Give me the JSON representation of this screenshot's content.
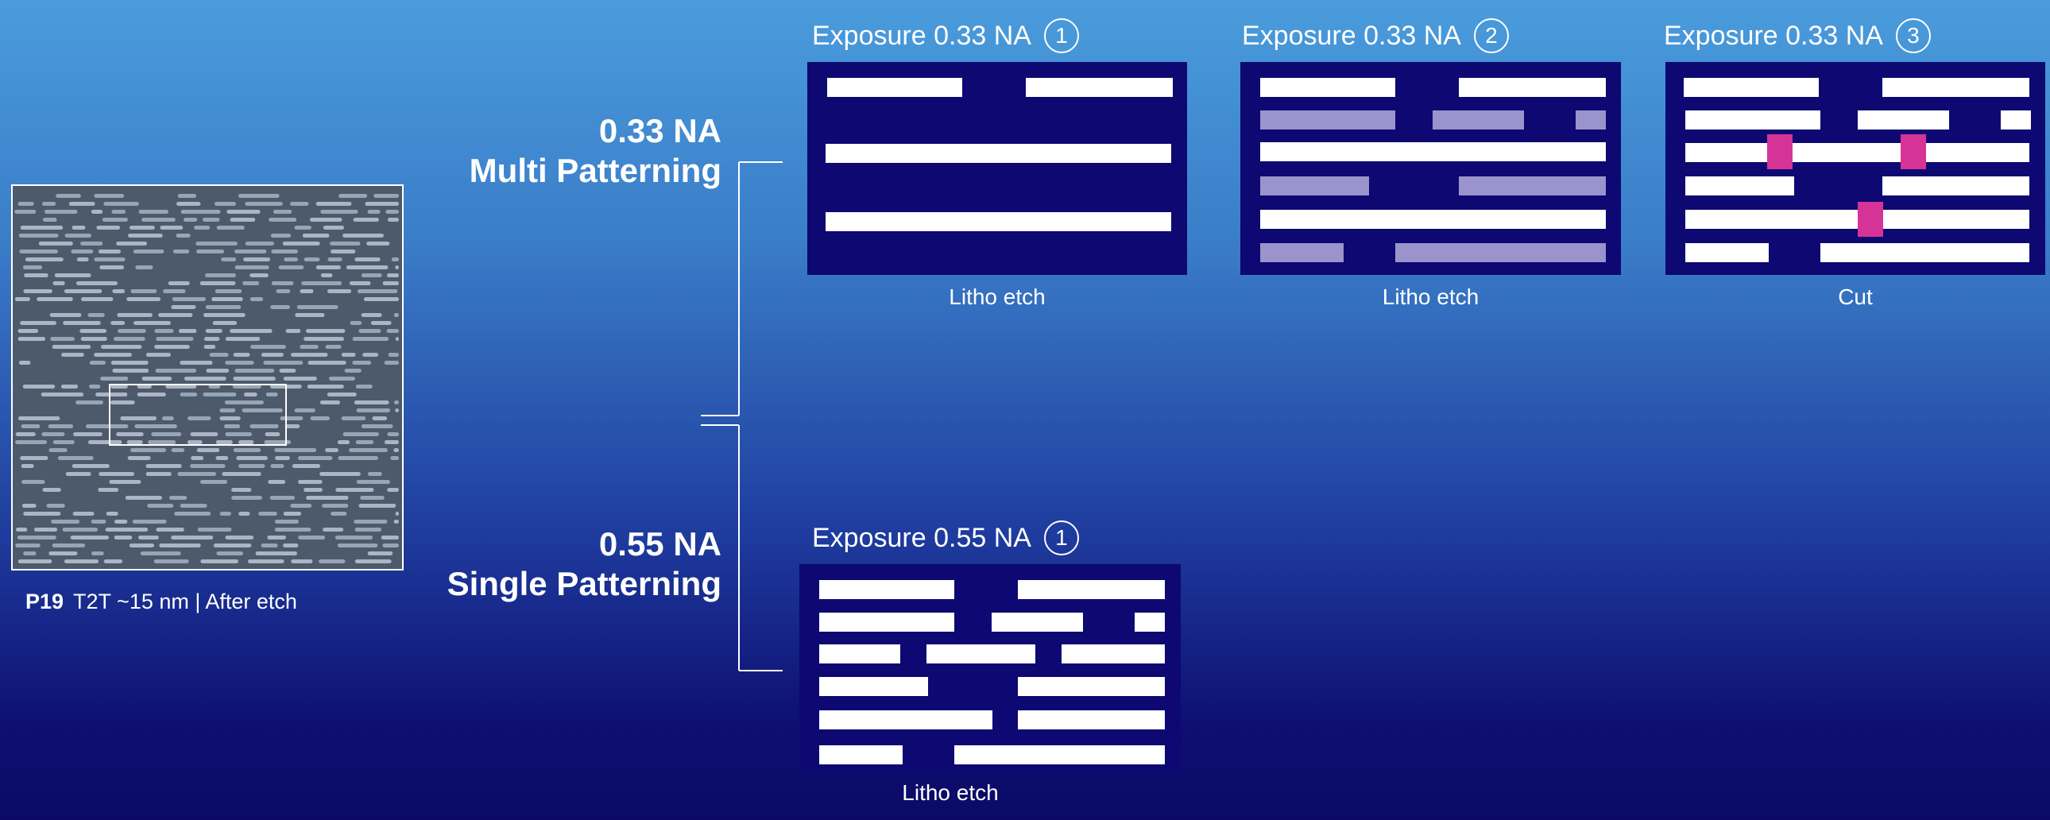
{
  "sem_image": {
    "caption_bold": "P19",
    "caption_text": "T2T  ~15 nm | After etch"
  },
  "groups": [
    {
      "line1": "0.33 NA",
      "line2": "Multi Patterning"
    },
    {
      "line1": "0.55 NA",
      "line2": "Single Patterning"
    }
  ],
  "exposures": [
    {
      "title": "Exposure 0.33 NA",
      "number": "1",
      "caption": "Litho etch"
    },
    {
      "title": "Exposure 0.33 NA",
      "number": "2",
      "caption": "Litho etch"
    },
    {
      "title": "Exposure 0.33 NA",
      "number": "3",
      "caption": "Cut"
    },
    {
      "title": "Exposure 0.55 NA",
      "number": "1",
      "caption": "Litho etch"
    }
  ],
  "colors": {
    "panel_bg": "#0d0872",
    "line_white": "#ffffff",
    "line_lavender": "#9b93cc",
    "cut_magenta": "#d63396"
  }
}
